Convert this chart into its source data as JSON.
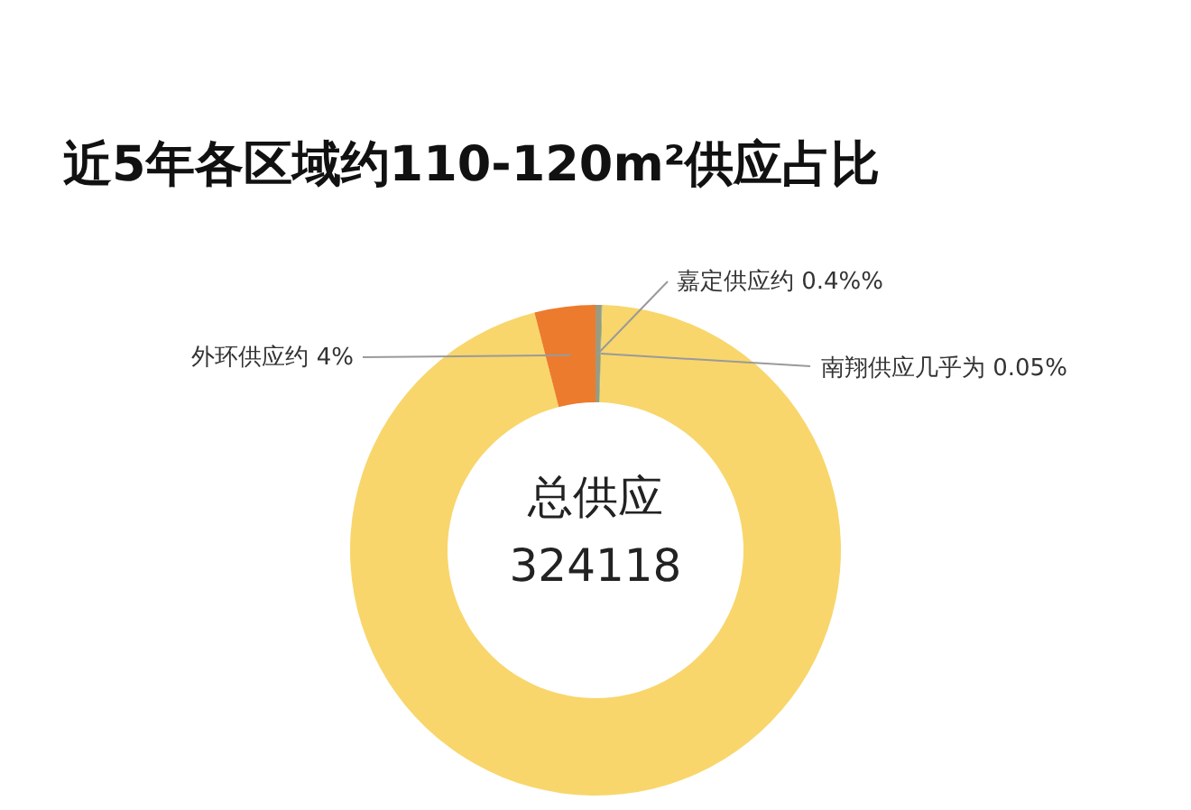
{
  "chart_data": {
    "type": "donut",
    "title": "近5年各区域约110-120m²供应占比",
    "categories": [
      "嘉定供应约",
      "南翔供应几乎为",
      null,
      "外环供应约"
    ],
    "values": [
      0.4,
      0.05,
      95.55,
      4
    ],
    "value_labels": [
      "0.4%%",
      "0.05%",
      null,
      "4%"
    ],
    "colors": [
      "#9c9a7e",
      "#7fa85e",
      "#f8d66b",
      "#ec7b2d"
    ],
    "annotations": [
      "总供应",
      "324118"
    ],
    "legend": false
  }
}
